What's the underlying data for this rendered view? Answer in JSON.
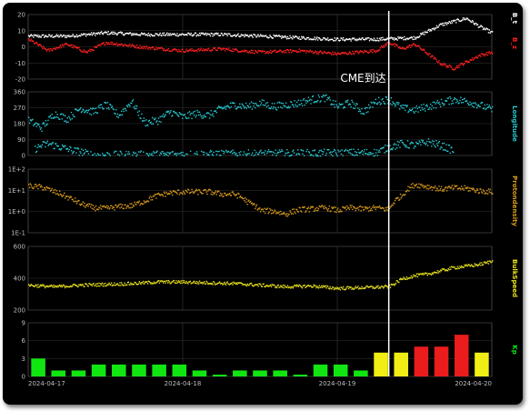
{
  "chart_data": {
    "type": "line",
    "x_range": [
      "2024-04-17",
      "2024-04-20"
    ],
    "x_ticks": [
      "2024-04-17",
      "2024-04-18",
      "2024-04-19",
      "2024-04-20"
    ],
    "annotation": {
      "text": "CME到达",
      "x": "2024-04-19 08:00"
    },
    "colors": {
      "Bt": "#ffffff",
      "Bz": "#ff2020",
      "longitude": "#27c9d1",
      "density": "#d79a1c",
      "speed": "#e8e21c",
      "kp_low": "#12e612",
      "kp_mid": "#f0ee14",
      "kp_high": "#ea1c1c",
      "marker": "#ffffff"
    },
    "panels": [
      {
        "id": "magnetic",
        "labels": [
          "B_z",
          "B_t"
        ],
        "ylim": [
          -20,
          20
        ],
        "yticks": [
          "20",
          "10",
          "0",
          "-10",
          "-20"
        ],
        "series": [
          {
            "name": "B_t",
            "x_hours": [
              0,
              6,
              12,
              18,
              24,
              30,
              36,
              42,
              48,
              54,
              60,
              62,
              64,
              66,
              68,
              70,
              72
            ],
            "values": [
              7,
              7,
              9,
              8,
              8,
              8,
              7,
              6,
              5,
              5,
              6,
              10,
              14,
              16,
              18,
              13,
              9
            ]
          },
          {
            "name": "B_z",
            "x_hours": [
              0,
              3,
              6,
              9,
              12,
              18,
              24,
              30,
              36,
              42,
              48,
              54,
              56,
              58,
              60,
              62,
              64,
              66,
              68,
              70,
              72
            ],
            "values": [
              5,
              -2,
              2,
              -3,
              3,
              0,
              -2,
              -1,
              -3,
              -2,
              -4,
              -2,
              3,
              -1,
              2,
              -4,
              -10,
              -13,
              -9,
              -5,
              -3
            ]
          }
        ]
      },
      {
        "id": "longitude",
        "labels": [
          "Longitude"
        ],
        "ylim": [
          0,
          360
        ],
        "yticks": [
          "360",
          "270",
          "180",
          "90",
          "0"
        ],
        "series": [
          {
            "name": "Longitude",
            "x_hours": [
              0,
              2,
              4,
              6,
              8,
              10,
              12,
              14,
              16,
              18,
              20,
              22,
              24,
              26,
              28,
              30,
              32,
              34,
              36,
              38,
              40,
              42,
              44,
              46,
              48,
              50,
              52,
              54,
              56,
              58,
              60,
              62,
              64,
              66,
              68,
              70,
              72
            ],
            "values": [
              200,
              160,
              240,
              210,
              270,
              250,
              290,
              230,
              310,
              190,
              200,
              250,
              220,
              240,
              230,
              270,
              290,
              280,
              300,
              280,
              290,
              300,
              320,
              330,
              280,
              300,
              250,
              310,
              320,
              270,
              260,
              280,
              300,
              320,
              310,
              290,
              260
            ]
          },
          {
            "name": "Longitude-low",
            "x_hours": [
              1,
              2,
              3,
              4,
              5,
              6,
              7,
              8,
              9,
              10,
              54,
              56,
              58,
              60,
              62,
              64,
              66
            ],
            "values": [
              40,
              60,
              70,
              60,
              50,
              40,
              30,
              25,
              15,
              5,
              20,
              50,
              70,
              60,
              80,
              60,
              30
            ]
          }
        ]
      },
      {
        "id": "density",
        "labels": [
          "Protondensity"
        ],
        "scale": "log",
        "ylim": [
          0.1,
          100
        ],
        "yticks": [
          "1E+2",
          "1E+1",
          "1E+0",
          "1E-1"
        ],
        "series": [
          {
            "name": "Protondensity",
            "x_hours": [
              0,
              2,
              4,
              6,
              8,
              10,
              12,
              14,
              16,
              18,
              20,
              22,
              24,
              26,
              28,
              30,
              32,
              34,
              36,
              38,
              40,
              42,
              44,
              46,
              48,
              50,
              52,
              54,
              56,
              58,
              60,
              62,
              64,
              66,
              68,
              70,
              72
            ],
            "values": [
              17,
              15,
              9,
              5,
              2.5,
              1.6,
              1.5,
              1.8,
              2.0,
              3.2,
              6,
              8,
              9,
              9,
              9,
              7,
              7,
              3,
              1.2,
              1.1,
              0.8,
              1.3,
              1.4,
              1.6,
              1.2,
              1.6,
              1.4,
              1.6,
              1.3,
              6,
              20,
              16,
              12,
              14,
              13,
              10,
              9
            ]
          }
        ]
      },
      {
        "id": "speed",
        "labels": [
          "BulkSpeed"
        ],
        "ylim": [
          200,
          600
        ],
        "yticks": [
          "600",
          "400",
          "200"
        ],
        "series": [
          {
            "name": "BulkSpeed",
            "x_hours": [
              0,
              4,
              8,
              12,
              16,
              20,
              24,
              28,
              32,
              36,
              40,
              44,
              48,
              52,
              56,
              58,
              60,
              62,
              64,
              66,
              68,
              70,
              72
            ],
            "values": [
              360,
              350,
              360,
              365,
              370,
              380,
              380,
              375,
              370,
              360,
              350,
              355,
              340,
              345,
              350,
              400,
              420,
              430,
              450,
              470,
              480,
              490,
              510
            ]
          }
        ]
      },
      {
        "id": "kp",
        "labels": [
          "Kp"
        ],
        "ylim": [
          0,
          9
        ],
        "yticks": [
          "9",
          "6",
          "3",
          "0"
        ],
        "bars": [
          3,
          1,
          1,
          2,
          2,
          2,
          2,
          2,
          1,
          0.3,
          1,
          1,
          1,
          0.3,
          2,
          2,
          1,
          4,
          4,
          5,
          5,
          7,
          4
        ]
      }
    ]
  }
}
